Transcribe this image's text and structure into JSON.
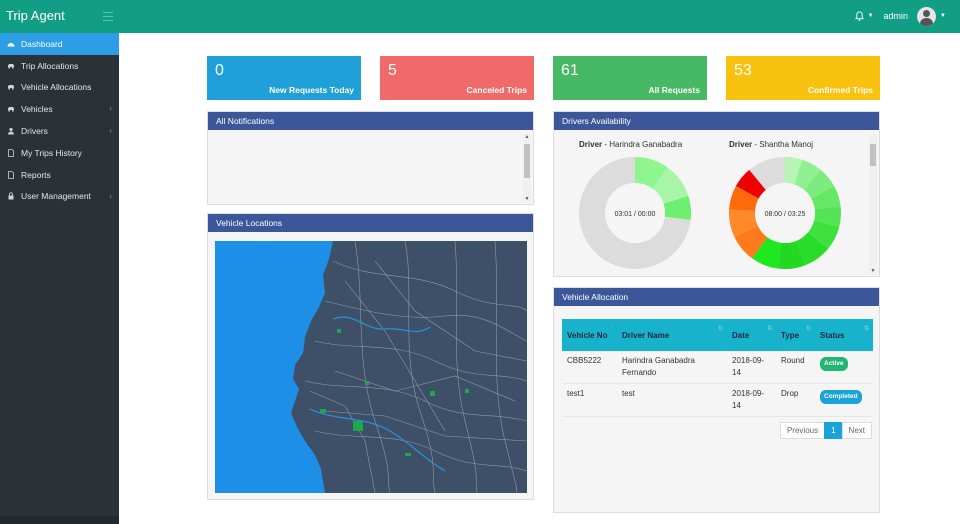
{
  "app": {
    "title": "Trip Agent"
  },
  "header": {
    "user": "admin"
  },
  "sidebar": {
    "items": [
      {
        "label": "Dashboard",
        "icon": "dashboard-icon",
        "active": true
      },
      {
        "label": "Trip Allocations",
        "icon": "car-icon"
      },
      {
        "label": "Vehicle Allocations",
        "icon": "car-icon"
      },
      {
        "label": "Vehicles",
        "icon": "car-icon",
        "expandable": true
      },
      {
        "label": "Drivers",
        "icon": "user-icon",
        "expandable": true
      },
      {
        "label": "My Trips History",
        "icon": "document-icon"
      },
      {
        "label": "Reports",
        "icon": "document-icon"
      },
      {
        "label": "User Management",
        "icon": "lock-icon",
        "expandable": true
      }
    ]
  },
  "stats": [
    {
      "value": "0",
      "label": "New Requests Today",
      "color": "#1fa0d8"
    },
    {
      "value": "5",
      "label": "Canceled Trips",
      "color": "#f06a6a"
    },
    {
      "value": "61",
      "label": "All Requests",
      "color": "#47b965"
    },
    {
      "value": "53",
      "label": "Confirmed Trips",
      "color": "#f8c20f"
    }
  ],
  "notifications": {
    "title": "All Notifications"
  },
  "vehicle_locations": {
    "title": "Vehicle Locations"
  },
  "drivers_availability": {
    "title": "Drivers Availability",
    "driver_prefix": "Driver",
    "drivers": [
      {
        "name": "Harindra Ganabadra",
        "time": "03:01 / 00:00"
      },
      {
        "name": "Shantha Manoj",
        "time": "08:00 / 03:25"
      }
    ]
  },
  "vehicle_allocation": {
    "title": "Vehicle Allocation",
    "columns": [
      "Vehicle No",
      "Driver Name",
      "Date",
      "Type",
      "Status"
    ],
    "rows": [
      {
        "vehicle": "CBB5222",
        "driver": "Harindra Ganabadra Fernando",
        "date": "2018-09-14",
        "type": "Round",
        "status": "Active"
      },
      {
        "vehicle": "test1",
        "driver": "test",
        "date": "2018-09-14",
        "type": "Drop",
        "status": "Completed"
      }
    ],
    "pagination": {
      "previous": "Previous",
      "current": "1",
      "next": "Next"
    }
  }
}
